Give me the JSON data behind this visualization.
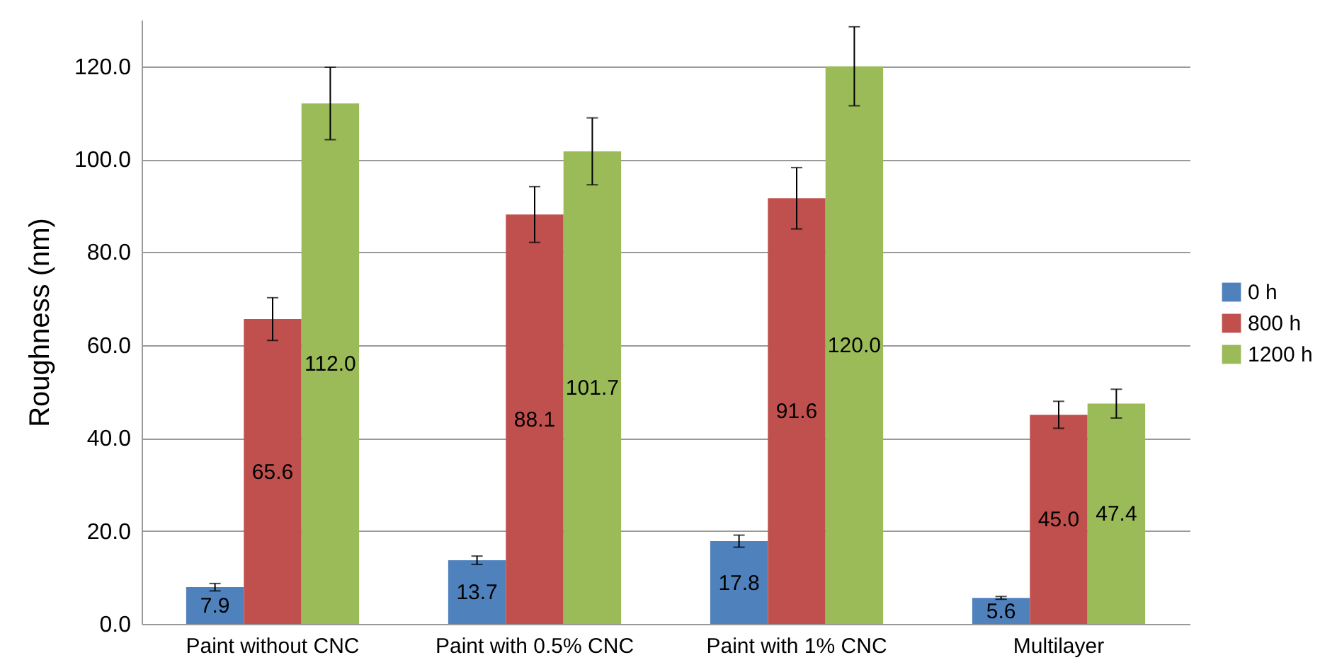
{
  "chart_data": {
    "type": "bar",
    "ylabel": "Roughness (nm)",
    "categories": [
      "Paint without CNC",
      "Paint with 0.5% CNC",
      "Paint with 1% CNC",
      "Multilayer"
    ],
    "series": [
      {
        "name": "0 h",
        "color": "#4f81bd",
        "values": [
          7.9,
          13.7,
          17.8,
          5.6
        ],
        "errors": [
          0.8,
          0.9,
          1.3,
          0.3
        ],
        "value_labels": [
          "7.9",
          "13.7",
          "17.8",
          "5.6"
        ]
      },
      {
        "name": "800 h",
        "color": "#c0504d",
        "values": [
          65.6,
          88.1,
          91.6,
          45.0
        ],
        "errors": [
          4.6,
          6.0,
          6.6,
          2.9
        ],
        "value_labels": [
          "65.6",
          "88.1",
          "91.6",
          "45.0"
        ]
      },
      {
        "name": "1200 h",
        "color": "#9bbb59",
        "values": [
          112.0,
          101.7,
          120.0,
          47.4
        ],
        "errors": [
          7.8,
          7.2,
          8.5,
          3.1
        ],
        "value_labels": [
          "112.0",
          "101.7",
          "120.0",
          "47.4"
        ]
      }
    ],
    "ylim": [
      0,
      130
    ],
    "yticks": [
      {
        "value": 0,
        "label": "0.0"
      },
      {
        "value": 20,
        "label": "20.0"
      },
      {
        "value": 40,
        "label": "40.0"
      },
      {
        "value": 60,
        "label": "60.0"
      },
      {
        "value": 80,
        "label": "80.0"
      },
      {
        "value": 100,
        "label": "100.0"
      },
      {
        "value": 120,
        "label": "120.0"
      }
    ],
    "grid": "y",
    "legend": "right"
  }
}
